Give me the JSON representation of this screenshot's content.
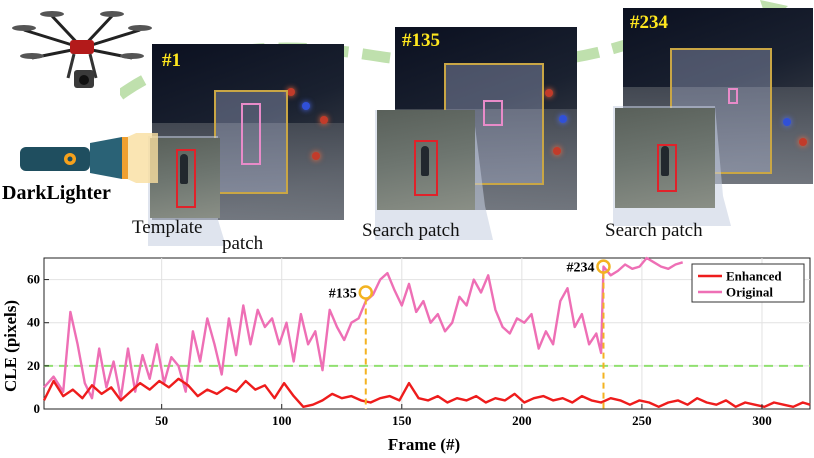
{
  "frames": [
    {
      "label": "#1",
      "caption_a": "Template",
      "caption_b": "patch"
    },
    {
      "label": "#135",
      "caption": "Search patch"
    },
    {
      "label": "#234",
      "caption": "Search patch"
    }
  ],
  "brand": "DarkLighter",
  "icons": [
    "drone-icon",
    "flashlight-icon"
  ],
  "colors": {
    "enhanced": "#ee1c1c",
    "original": "#ee6fb5",
    "threshold": "#90e070",
    "marker": "#f3b321"
  },
  "chart_data": {
    "type": "line",
    "title": "",
    "xlabel": "Frame (#)",
    "ylabel": "CLE (pixels)",
    "xlim": [
      1,
      320
    ],
    "ylim": [
      0,
      70
    ],
    "xticks": [
      50,
      100,
      150,
      200,
      250,
      300
    ],
    "yticks": [
      0,
      20,
      40,
      60
    ],
    "grid": true,
    "legend_position": "top-right",
    "threshold": 20,
    "annotations": [
      {
        "label": "#135",
        "x": 135,
        "y": 54
      },
      {
        "label": "#234",
        "x": 234,
        "y": 66
      }
    ],
    "series": [
      {
        "name": "Enhanced",
        "color": "#ee1c1c",
        "x": [
          1,
          5,
          9,
          13,
          17,
          21,
          25,
          29,
          33,
          37,
          41,
          45,
          49,
          53,
          57,
          61,
          65,
          69,
          73,
          77,
          81,
          85,
          89,
          93,
          97,
          101,
          105,
          109,
          113,
          117,
          121,
          125,
          129,
          133,
          137,
          141,
          145,
          149,
          153,
          157,
          161,
          165,
          169,
          173,
          177,
          181,
          185,
          189,
          193,
          197,
          201,
          205,
          209,
          213,
          217,
          221,
          225,
          229,
          233,
          237,
          241,
          245,
          249,
          253,
          257,
          261,
          265,
          269,
          273,
          277,
          281,
          285,
          289,
          293,
          297,
          301,
          305,
          309,
          313,
          317,
          320
        ],
        "y": [
          4,
          13,
          6,
          9,
          5,
          11,
          7,
          10,
          4,
          8,
          12,
          9,
          13,
          10,
          14,
          11,
          6,
          9,
          7,
          10,
          8,
          13,
          9,
          11,
          5,
          12,
          6,
          1,
          2,
          4,
          7,
          5,
          6,
          4,
          3,
          5,
          6,
          4,
          12,
          5,
          4,
          6,
          3,
          5,
          4,
          6,
          3,
          5,
          4,
          7,
          3,
          5,
          6,
          4,
          5,
          3,
          6,
          4,
          3,
          5,
          4,
          2,
          4,
          3,
          1,
          3,
          4,
          2,
          5,
          3,
          2,
          4,
          1,
          3,
          2,
          1,
          3,
          2,
          1,
          3,
          2
        ]
      },
      {
        "name": "Original",
        "color": "#ee6fb5",
        "x": [
          1,
          5,
          9,
          12,
          15,
          18,
          21,
          24,
          27,
          30,
          33,
          36,
          39,
          42,
          45,
          48,
          51,
          54,
          57,
          60,
          63,
          66,
          69,
          72,
          75,
          78,
          81,
          84,
          87,
          90,
          93,
          96,
          99,
          102,
          105,
          108,
          111,
          114,
          117,
          120,
          123,
          126,
          129,
          132,
          135,
          138,
          141,
          144,
          147,
          150,
          153,
          156,
          159,
          162,
          165,
          168,
          171,
          174,
          177,
          180,
          183,
          186,
          189,
          192,
          195,
          198,
          201,
          204,
          207,
          210,
          213,
          216,
          219,
          222,
          225,
          228,
          231,
          233,
          234,
          237,
          240,
          243,
          246,
          249,
          252,
          255,
          258,
          261,
          264,
          267
        ],
        "y": [
          10,
          15,
          8,
          45,
          30,
          12,
          5,
          28,
          10,
          22,
          5,
          28,
          8,
          25,
          14,
          30,
          12,
          24,
          20,
          8,
          36,
          22,
          42,
          30,
          16,
          42,
          25,
          48,
          30,
          46,
          38,
          42,
          30,
          40,
          22,
          44,
          30,
          36,
          18,
          46,
          38,
          32,
          40,
          42,
          50,
          53,
          60,
          63,
          55,
          48,
          58,
          45,
          50,
          40,
          44,
          36,
          40,
          52,
          48,
          60,
          54,
          62,
          46,
          38,
          35,
          42,
          40,
          44,
          28,
          36,
          30,
          50,
          56,
          38,
          44,
          30,
          35,
          26,
          66,
          62,
          64,
          67,
          65,
          66,
          70,
          68,
          66,
          65,
          67,
          68
        ]
      }
    ]
  }
}
